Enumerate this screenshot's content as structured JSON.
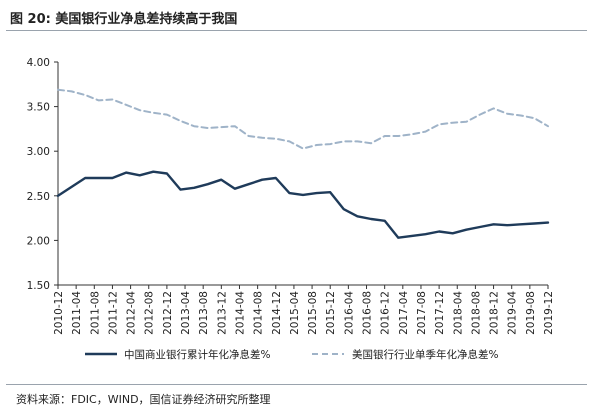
{
  "figure": {
    "title": "图 20:  美国银行业净息差持续高于我国",
    "source": "资料来源：FDIC，WIND，国信证券经济研究所整理"
  },
  "colors": {
    "china_series": "#1f3b5a",
    "us_series": "#9fb3c8",
    "axis": "#333333",
    "rule": "#9aa3ad"
  },
  "chart_data": {
    "type": "line",
    "x": [
      "2010-12",
      "2011-04",
      "2011-08",
      "2011-12",
      "2012-04",
      "2012-08",
      "2012-12",
      "2013-04",
      "2013-08",
      "2013-12",
      "2014-04",
      "2014-08",
      "2014-12",
      "2015-04",
      "2015-08",
      "2015-12",
      "2016-04",
      "2016-08",
      "2016-12",
      "2017-04",
      "2017-08",
      "2017-12",
      "2018-04",
      "2018-08",
      "2018-12",
      "2019-04",
      "2019-08",
      "2019-12"
    ],
    "ylim": [
      1.5,
      4.0
    ],
    "yticks": [
      "1.50",
      "2.00",
      "2.50",
      "3.00",
      "3.50",
      "4.00"
    ],
    "grid": false,
    "legend_position": "bottom",
    "series": [
      {
        "name": "中国商业银行累计年化净息差%",
        "style": "solid",
        "color": "#1f3b5a",
        "points": [
          [
            "2010-12",
            2.5
          ],
          [
            "2011-03",
            2.6
          ],
          [
            "2011-06",
            2.7
          ],
          [
            "2011-09",
            2.7
          ],
          [
            "2011-12",
            2.7
          ],
          [
            "2012-03",
            2.76
          ],
          [
            "2012-06",
            2.73
          ],
          [
            "2012-09",
            2.77
          ],
          [
            "2012-12",
            2.75
          ],
          [
            "2013-03",
            2.57
          ],
          [
            "2013-06",
            2.59
          ],
          [
            "2013-09",
            2.63
          ],
          [
            "2013-12",
            2.68
          ],
          [
            "2014-03",
            2.58
          ],
          [
            "2014-06",
            2.63
          ],
          [
            "2014-09",
            2.68
          ],
          [
            "2014-12",
            2.7
          ],
          [
            "2015-03",
            2.53
          ],
          [
            "2015-06",
            2.51
          ],
          [
            "2015-09",
            2.53
          ],
          [
            "2015-12",
            2.54
          ],
          [
            "2016-03",
            2.35
          ],
          [
            "2016-06",
            2.27
          ],
          [
            "2016-09",
            2.24
          ],
          [
            "2016-12",
            2.22
          ],
          [
            "2017-03",
            2.03
          ],
          [
            "2017-06",
            2.05
          ],
          [
            "2017-09",
            2.07
          ],
          [
            "2017-12",
            2.1
          ],
          [
            "2018-03",
            2.08
          ],
          [
            "2018-06",
            2.12
          ],
          [
            "2018-09",
            2.15
          ],
          [
            "2018-12",
            2.18
          ],
          [
            "2019-03",
            2.17
          ],
          [
            "2019-06",
            2.18
          ],
          [
            "2019-09",
            2.19
          ],
          [
            "2019-12",
            2.2
          ]
        ]
      },
      {
        "name": "美国银行行业单季年化净息差%",
        "style": "dashed",
        "color": "#9fb3c8",
        "points": [
          [
            "2010-12",
            3.69
          ],
          [
            "2011-03",
            3.67
          ],
          [
            "2011-06",
            3.63
          ],
          [
            "2011-09",
            3.57
          ],
          [
            "2011-12",
            3.58
          ],
          [
            "2012-03",
            3.52
          ],
          [
            "2012-06",
            3.46
          ],
          [
            "2012-09",
            3.43
          ],
          [
            "2012-12",
            3.41
          ],
          [
            "2013-03",
            3.34
          ],
          [
            "2013-06",
            3.28
          ],
          [
            "2013-09",
            3.26
          ],
          [
            "2013-12",
            3.27
          ],
          [
            "2014-03",
            3.28
          ],
          [
            "2014-06",
            3.17
          ],
          [
            "2014-09",
            3.15
          ],
          [
            "2014-12",
            3.14
          ],
          [
            "2015-03",
            3.11
          ],
          [
            "2015-06",
            3.03
          ],
          [
            "2015-09",
            3.07
          ],
          [
            "2015-12",
            3.08
          ],
          [
            "2016-03",
            3.11
          ],
          [
            "2016-06",
            3.11
          ],
          [
            "2016-09",
            3.09
          ],
          [
            "2016-12",
            3.17
          ],
          [
            "2017-03",
            3.17
          ],
          [
            "2017-06",
            3.19
          ],
          [
            "2017-09",
            3.22
          ],
          [
            "2017-12",
            3.3
          ],
          [
            "2018-03",
            3.32
          ],
          [
            "2018-06",
            3.33
          ],
          [
            "2018-09",
            3.41
          ],
          [
            "2018-12",
            3.48
          ],
          [
            "2019-03",
            3.42
          ],
          [
            "2019-06",
            3.4
          ],
          [
            "2019-09",
            3.37
          ],
          [
            "2019-12",
            3.28
          ]
        ]
      }
    ]
  }
}
